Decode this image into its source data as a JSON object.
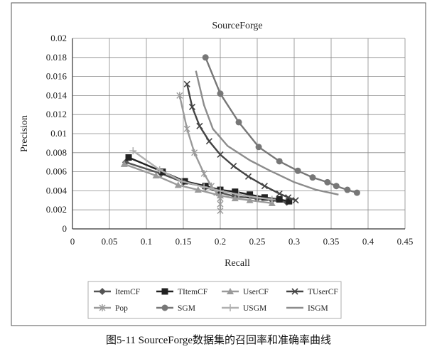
{
  "caption": "图5-11    SourceForge数据集的召回率和准确率曲线",
  "chart_data": {
    "type": "line",
    "title": "SourceForge",
    "xlabel": "Recall",
    "ylabel": "Precision",
    "xlim": [
      0,
      0.45
    ],
    "ylim": [
      0,
      0.02
    ],
    "x_ticks": [
      "0",
      "0.05",
      "0.1",
      "0.15",
      "0.2",
      "0.25",
      "0.3",
      "0.35",
      "0.4",
      "0.45"
    ],
    "x_tick_values": [
      0,
      0.05,
      0.1,
      0.15,
      0.2,
      0.25,
      0.3,
      0.35,
      0.4,
      0.45
    ],
    "y_ticks": [
      "0",
      "0.002",
      "0.004",
      "0.006",
      "0.008",
      "0.01",
      "0.012",
      "0.014",
      "0.016",
      "0.018",
      "0.02"
    ],
    "y_tick_values": [
      0,
      0.002,
      0.004,
      0.006,
      0.008,
      0.01,
      0.012,
      0.014,
      0.016,
      0.018,
      0.02
    ],
    "grid": true,
    "legend_position": "bottom",
    "series": [
      {
        "name": "ItemCF",
        "color": "#555555",
        "marker": "diamond",
        "points": [
          [
            0.072,
            0.007
          ],
          [
            0.12,
            0.0058
          ],
          [
            0.15,
            0.0049
          ],
          [
            0.18,
            0.0044
          ],
          [
            0.2,
            0.0038
          ],
          [
            0.22,
            0.0034
          ],
          [
            0.25,
            0.0032
          ],
          [
            0.27,
            0.003
          ],
          [
            0.29,
            0.0028
          ]
        ]
      },
      {
        "name": "TItemCF",
        "color": "#222222",
        "marker": "square",
        "points": [
          [
            0.076,
            0.0075
          ],
          [
            0.122,
            0.006
          ],
          [
            0.152,
            0.005
          ],
          [
            0.18,
            0.0045
          ],
          [
            0.2,
            0.0041
          ],
          [
            0.22,
            0.0039
          ],
          [
            0.24,
            0.0036
          ],
          [
            0.26,
            0.0033
          ],
          [
            0.28,
            0.0031
          ],
          [
            0.293,
            0.0029
          ]
        ]
      },
      {
        "name": "UserCF",
        "color": "#9a9a9a",
        "marker": "triangle",
        "points": [
          [
            0.07,
            0.0068
          ],
          [
            0.113,
            0.0056
          ],
          [
            0.143,
            0.0046
          ],
          [
            0.17,
            0.0041
          ],
          [
            0.2,
            0.0035
          ],
          [
            0.22,
            0.0032
          ],
          [
            0.24,
            0.003
          ],
          [
            0.27,
            0.0027
          ]
        ]
      },
      {
        "name": "TUserCF",
        "color": "#444444",
        "marker": "x",
        "points": [
          [
            0.155,
            0.0152
          ],
          [
            0.162,
            0.0128
          ],
          [
            0.172,
            0.0108
          ],
          [
            0.185,
            0.0092
          ],
          [
            0.2,
            0.0078
          ],
          [
            0.218,
            0.0066
          ],
          [
            0.238,
            0.0055
          ],
          [
            0.26,
            0.0045
          ],
          [
            0.28,
            0.0037
          ],
          [
            0.292,
            0.0033
          ],
          [
            0.302,
            0.003
          ]
        ]
      },
      {
        "name": "Pop",
        "color": "#9a9a9a",
        "marker": "asterisk",
        "points": [
          [
            0.145,
            0.014
          ],
          [
            0.155,
            0.0105
          ],
          [
            0.165,
            0.008
          ],
          [
            0.178,
            0.0058
          ],
          [
            0.188,
            0.0045
          ],
          [
            0.195,
            0.0038
          ],
          [
            0.2,
            0.0032
          ],
          [
            0.2,
            0.0026
          ],
          [
            0.2,
            0.0019
          ]
        ]
      },
      {
        "name": "SGM",
        "color": "#777777",
        "marker": "circle",
        "points": [
          [
            0.18,
            0.018
          ],
          [
            0.2,
            0.0142
          ],
          [
            0.225,
            0.0112
          ],
          [
            0.252,
            0.0086
          ],
          [
            0.28,
            0.0071
          ],
          [
            0.305,
            0.0061
          ],
          [
            0.325,
            0.0054
          ],
          [
            0.345,
            0.0049
          ],
          [
            0.357,
            0.0045
          ],
          [
            0.372,
            0.0041
          ],
          [
            0.385,
            0.0038
          ]
        ]
      },
      {
        "name": "USGM",
        "color": "#b0b0b0",
        "marker": "plus",
        "points": [
          [
            0.082,
            0.0082
          ],
          [
            0.118,
            0.0062
          ],
          [
            0.148,
            0.005
          ],
          [
            0.178,
            0.0044
          ],
          [
            0.2,
            0.004
          ],
          [
            0.225,
            0.0036
          ],
          [
            0.25,
            0.0033
          ],
          [
            0.27,
            0.0031
          ]
        ]
      },
      {
        "name": "ISGM",
        "color": "#8c8c8c",
        "marker": "dash",
        "points": [
          [
            0.167,
            0.0166
          ],
          [
            0.178,
            0.013
          ],
          [
            0.19,
            0.0105
          ],
          [
            0.21,
            0.0087
          ],
          [
            0.24,
            0.0072
          ],
          [
            0.265,
            0.0062
          ],
          [
            0.3,
            0.0049
          ],
          [
            0.33,
            0.0041
          ],
          [
            0.36,
            0.0036
          ]
        ]
      }
    ]
  }
}
